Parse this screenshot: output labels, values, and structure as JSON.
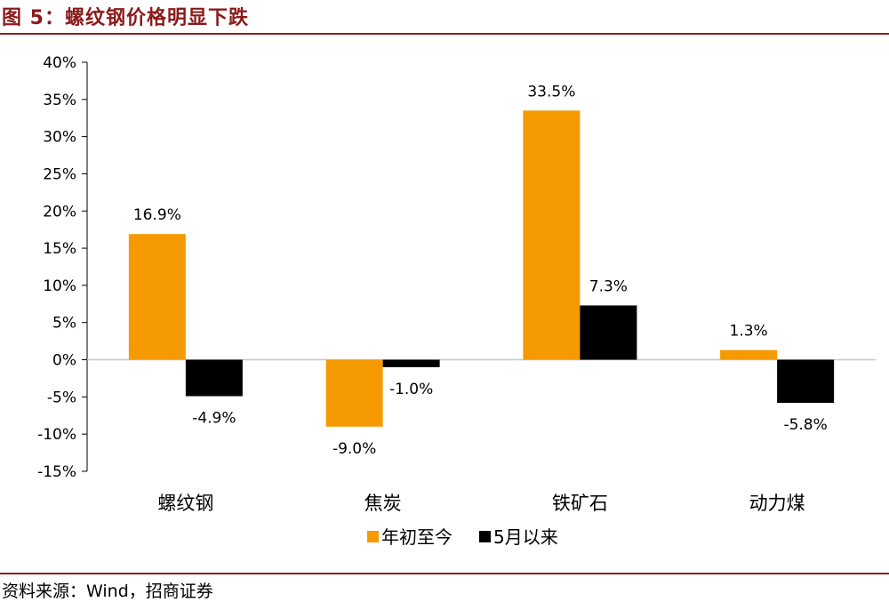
{
  "figure_title": "图 5：螺纹钢价格明显下跌",
  "source": "资料来源：Wind，招商证券",
  "chart_data": {
    "type": "bar",
    "title": "",
    "xlabel": "",
    "ylabel": "",
    "categories": [
      "螺纹钢",
      "焦炭",
      "铁矿石",
      "动力煤"
    ],
    "series": [
      {
        "name": "年初至今",
        "color": "#F59A00",
        "values": [
          16.9,
          -9.0,
          33.5,
          1.3
        ],
        "labels": [
          "16.9%",
          "-9.0%",
          "33.5%",
          "1.3%"
        ]
      },
      {
        "name": "5月以来",
        "color": "#000000",
        "values": [
          -4.9,
          -1.0,
          7.3,
          -5.8
        ],
        "labels": [
          "-4.9%",
          "-1.0%",
          "7.3%",
          "-5.8%"
        ]
      }
    ],
    "ylim": [
      -15,
      40
    ],
    "yticks": [
      40,
      35,
      30,
      25,
      20,
      15,
      10,
      5,
      0,
      -5,
      -10,
      -15
    ],
    "ytick_labels": [
      "40%",
      "35%",
      "30%",
      "25%",
      "20%",
      "15%",
      "10%",
      "5%",
      "0%",
      "-5%",
      "-10%",
      "-15%"
    ],
    "grid": false,
    "legend_position": "bottom"
  }
}
